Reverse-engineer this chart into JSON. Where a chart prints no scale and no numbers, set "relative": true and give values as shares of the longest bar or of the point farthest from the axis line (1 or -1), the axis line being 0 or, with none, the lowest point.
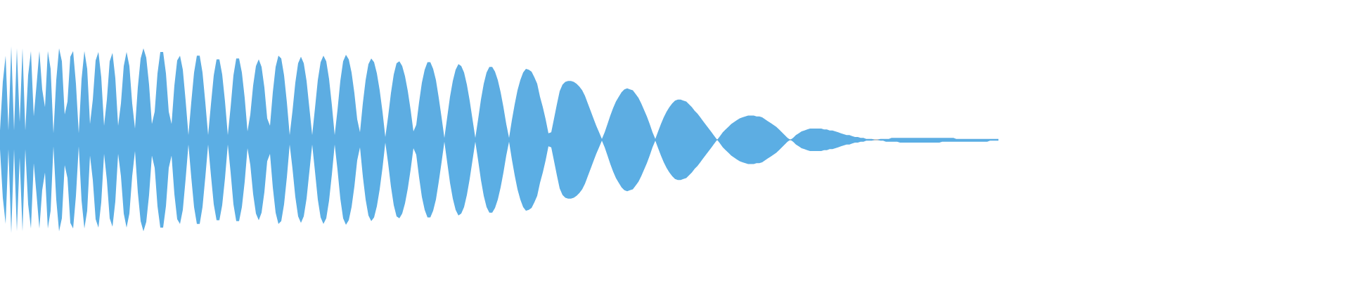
{
  "chart_data": {
    "type": "area",
    "relative": true,
    "categories": [
      null,
      null,
      null,
      null,
      null,
      null,
      null,
      null,
      null,
      null,
      null,
      null,
      null,
      null,
      null,
      null,
      null,
      null,
      null,
      null,
      null,
      null,
      null,
      null,
      null,
      null,
      null,
      null,
      null,
      null,
      null,
      null,
      null,
      null,
      null,
      null,
      null,
      null,
      null,
      null,
      null,
      null,
      null,
      null,
      null,
      null,
      null,
      null,
      null,
      null,
      null,
      null,
      null,
      null,
      null,
      null,
      null,
      null,
      null,
      null,
      null,
      null,
      null,
      null,
      null,
      null,
      null,
      null,
      null,
      null,
      null,
      null,
      null,
      null,
      null,
      null,
      null,
      null,
      null,
      null,
      null,
      null,
      null,
      null,
      null,
      null,
      null,
      null,
      null,
      null,
      null,
      null,
      null,
      null,
      null,
      null,
      null,
      null,
      null,
      null,
      null,
      null,
      null,
      null,
      null,
      null,
      null,
      null,
      null,
      null,
      null,
      null,
      null,
      null,
      null,
      null,
      null,
      null,
      null,
      null,
      null,
      null,
      null,
      null,
      null,
      null,
      null,
      null,
      null,
      null,
      null,
      null,
      null,
      null,
      null,
      null,
      null,
      null,
      null,
      null,
      null,
      null,
      null,
      null,
      null,
      null,
      null,
      null,
      null,
      null,
      null,
      null,
      null,
      null,
      null,
      null,
      null,
      null,
      null,
      null,
      null,
      null,
      null,
      null,
      null,
      null,
      null,
      null,
      null,
      null,
      null,
      null,
      null,
      null,
      null,
      null,
      null,
      null,
      null,
      null,
      null,
      null,
      null,
      null,
      null,
      null,
      null,
      null,
      null,
      null,
      null,
      null,
      null,
      null,
      null,
      null,
      null,
      null,
      null,
      null,
      null,
      null,
      null,
      null,
      null,
      null,
      null,
      null,
      null,
      null,
      null,
      null,
      null,
      null,
      null,
      null,
      null,
      null,
      null,
      null,
      null,
      null,
      null,
      null,
      null,
      null,
      null,
      null,
      null,
      null,
      null,
      null,
      null,
      null,
      null,
      null,
      null,
      null,
      null,
      null,
      null,
      null,
      null,
      null,
      null,
      null,
      null,
      null,
      null,
      null,
      null,
      null,
      null,
      null,
      null,
      null,
      null,
      null,
      null,
      null,
      null,
      null,
      null,
      null,
      null,
      null,
      null,
      null,
      null,
      null,
      null,
      null,
      null,
      null,
      null,
      null,
      null,
      null,
      null,
      null,
      null,
      null,
      null,
      null,
      null,
      null,
      null,
      null,
      null,
      null,
      null,
      null,
      null,
      null,
      null,
      null,
      null,
      null,
      null,
      null,
      null,
      null,
      null,
      null,
      null,
      null,
      null,
      null,
      null,
      null,
      null,
      null,
      null,
      null,
      null,
      null,
      null,
      null,
      null,
      null,
      null,
      null,
      null,
      null,
      null,
      null,
      null,
      null,
      null,
      null,
      null,
      null,
      null,
      null,
      null,
      null,
      null,
      null,
      null,
      null,
      null,
      null,
      null,
      null,
      null,
      null,
      null,
      null,
      null,
      null,
      null,
      null,
      null,
      null,
      null,
      null
    ],
    "series": [
      {
        "color": "#5dade2",
        "values": [
          0.1,
          0.62,
          0.9,
          0.1,
          1,
          0.1,
          0.98,
          0.19,
          0.98,
          0.1,
          0.69,
          0.95,
          0.25,
          0.59,
          0.95,
          0.54,
          0.35,
          0.95,
          0.76,
          0.07,
          0.64,
          0.98,
          0.84,
          0.27,
          0.41,
          0.89,
          0.95,
          0.6,
          0.07,
          0.65,
          0.95,
          0.76,
          0.17,
          0.43,
          0.85,
          0.94,
          0.67,
          0.15,
          0.43,
          0.84,
          0.93,
          0.66,
          0.15,
          0.39,
          0.79,
          0.94,
          0.79,
          0.39,
          0.12,
          0.56,
          0.87,
          0.98,
          0.88,
          0.59,
          0.17,
          0.3,
          0.71,
          0.94,
          0.94,
          0.71,
          0.3,
          0.17,
          0.58,
          0.85,
          0.9,
          0.75,
          0.42,
          0.05,
          0.4,
          0.72,
          0.9,
          0.9,
          0.72,
          0.4,
          0.05,
          0.38,
          0.69,
          0.86,
          0.86,
          0.7,
          0.41,
          0.05,
          0.35,
          0.69,
          0.87,
          0.87,
          0.72,
          0.45,
          0.09,
          0.27,
          0.58,
          0.79,
          0.86,
          0.78,
          0.56,
          0.23,
          0.15,
          0.51,
          0.78,
          0.9,
          0.87,
          0.69,
          0.4,
          0.05,
          0.31,
          0.61,
          0.82,
          0.89,
          0.82,
          0.63,
          0.34,
          0.05,
          0.34,
          0.64,
          0.83,
          0.9,
          0.84,
          0.65,
          0.37,
          0.05,
          0.32,
          0.63,
          0.84,
          0.91,
          0.86,
          0.72,
          0.5,
          0.22,
          0.08,
          0.39,
          0.64,
          0.81,
          0.87,
          0.83,
          0.71,
          0.53,
          0.3,
          0.03,
          0.25,
          0.5,
          0.7,
          0.82,
          0.84,
          0.79,
          0.68,
          0.52,
          0.32,
          0.09,
          0.16,
          0.4,
          0.61,
          0.75,
          0.83,
          0.83,
          0.76,
          0.64,
          0.45,
          0.24,
          0.02,
          0.24,
          0.46,
          0.63,
          0.75,
          0.81,
          0.79,
          0.72,
          0.59,
          0.42,
          0.22,
          0.02,
          0.22,
          0.43,
          0.6,
          0.72,
          0.78,
          0.78,
          0.73,
          0.64,
          0.51,
          0.35,
          0.17,
          0.02,
          0.21,
          0.38,
          0.53,
          0.64,
          0.72,
          0.76,
          0.75,
          0.73,
          0.67,
          0.6,
          0.46,
          0.35,
          0.22,
          0.07,
          0.08,
          0.23,
          0.38,
          0.52,
          0.59,
          0.62,
          0.63,
          0.63,
          0.62,
          0.6,
          0.57,
          0.53,
          0.47,
          0.39,
          0.31,
          0.23,
          0.15,
          0.08,
          0.01,
          0.08,
          0.17,
          0.26,
          0.34,
          0.41,
          0.46,
          0.51,
          0.54,
          0.55,
          0.54,
          0.53,
          0.49,
          0.45,
          0.39,
          0.32,
          0.25,
          0.17,
          0.08,
          0.01,
          0.09,
          0.17,
          0.24,
          0.3,
          0.35,
          0.39,
          0.42,
          0.43,
          0.43,
          0.42,
          0.41,
          0.38,
          0.35,
          0.31,
          0.28,
          0.24,
          0.2,
          0.16,
          0.12,
          0.08,
          0.04,
          0,
          0.04,
          0.08,
          0.11,
          0.14,
          0.17,
          0.19,
          0.21,
          0.23,
          0.24,
          0.25,
          0.26,
          0.26,
          0.26,
          0.25,
          0.25,
          0.24,
          0.22,
          0.2,
          0.18,
          0.16,
          0.14,
          0.11,
          0.08,
          0.05,
          0.02,
          0,
          0.02,
          0.05,
          0.07,
          0.09,
          0.1,
          0.11,
          0.12,
          0.12,
          0.12,
          0.12,
          0.12,
          0.11,
          0.11,
          0.1,
          0.1,
          0.09,
          0.08,
          0.07,
          0.06,
          0.05,
          0.05,
          0.04,
          0.03,
          0.03,
          0.02,
          0.02,
          0.01,
          0.01,
          0.01,
          0,
          0,
          0.01,
          0.01,
          0.01,
          0.01,
          0.02,
          0.02,
          0.02,
          0.02,
          0.02,
          0.02,
          0.02,
          0.02,
          0.02,
          0.02,
          0.02,
          0.02,
          0.02,
          0.02,
          0.02,
          0.02,
          0.02,
          0.02,
          0.02,
          0.02,
          0.02,
          0.02,
          0.02,
          0.01,
          0.01,
          0.01,
          0.01,
          0.01,
          0.01,
          0.01,
          0.01,
          0.01,
          0.01,
          0.01,
          0.01,
          0.01,
          0.01,
          0.01,
          0.01
        ]
      },
      {
        "color": "#5baee4",
        "values": [
          -0.1,
          -0.62,
          -0.9,
          -0.1,
          -1,
          -0.1,
          -0.98,
          -0.19,
          -0.98,
          -0.1,
          -0.69,
          -0.95,
          -0.25,
          -0.59,
          -0.95,
          -0.54,
          -0.35,
          -0.95,
          -0.76,
          -0.07,
          -0.64,
          -0.98,
          -0.84,
          -0.27,
          -0.41,
          -0.89,
          -0.95,
          -0.6,
          -0.07,
          -0.65,
          -0.95,
          -0.76,
          -0.17,
          -0.43,
          -0.85,
          -0.94,
          -0.67,
          -0.15,
          -0.43,
          -0.84,
          -0.93,
          -0.66,
          -0.15,
          -0.39,
          -0.79,
          -0.94,
          -0.79,
          -0.39,
          -0.12,
          -0.56,
          -0.87,
          -0.98,
          -0.88,
          -0.59,
          -0.17,
          -0.3,
          -0.71,
          -0.94,
          -0.94,
          -0.71,
          -0.3,
          -0.17,
          -0.58,
          -0.85,
          -0.9,
          -0.75,
          -0.42,
          -0.05,
          -0.4,
          -0.72,
          -0.9,
          -0.9,
          -0.72,
          -0.4,
          -0.05,
          -0.38,
          -0.69,
          -0.86,
          -0.86,
          -0.7,
          -0.41,
          -0.05,
          -0.35,
          -0.69,
          -0.87,
          -0.87,
          -0.72,
          -0.45,
          -0.09,
          -0.27,
          -0.58,
          -0.79,
          -0.86,
          -0.78,
          -0.56,
          -0.23,
          -0.15,
          -0.51,
          -0.78,
          -0.9,
          -0.87,
          -0.69,
          -0.4,
          -0.05,
          -0.31,
          -0.61,
          -0.82,
          -0.89,
          -0.82,
          -0.63,
          -0.34,
          -0.05,
          -0.34,
          -0.64,
          -0.83,
          -0.9,
          -0.84,
          -0.65,
          -0.37,
          -0.05,
          -0.32,
          -0.63,
          -0.84,
          -0.91,
          -0.86,
          -0.72,
          -0.5,
          -0.22,
          -0.08,
          -0.39,
          -0.64,
          -0.81,
          -0.87,
          -0.83,
          -0.71,
          -0.53,
          -0.3,
          -0.03,
          -0.25,
          -0.5,
          -0.7,
          -0.82,
          -0.84,
          -0.79,
          -0.68,
          -0.52,
          -0.32,
          -0.09,
          -0.16,
          -0.4,
          -0.61,
          -0.75,
          -0.83,
          -0.83,
          -0.76,
          -0.64,
          -0.45,
          -0.24,
          -0.02,
          -0.24,
          -0.46,
          -0.63,
          -0.75,
          -0.81,
          -0.79,
          -0.72,
          -0.59,
          -0.42,
          -0.22,
          -0.02,
          -0.22,
          -0.43,
          -0.6,
          -0.72,
          -0.78,
          -0.78,
          -0.73,
          -0.64,
          -0.51,
          -0.35,
          -0.17,
          -0.02,
          -0.21,
          -0.38,
          -0.53,
          -0.64,
          -0.72,
          -0.76,
          -0.75,
          -0.73,
          -0.67,
          -0.6,
          -0.46,
          -0.35,
          -0.22,
          -0.07,
          -0.08,
          -0.23,
          -0.38,
          -0.52,
          -0.59,
          -0.62,
          -0.63,
          -0.63,
          -0.62,
          -0.6,
          -0.57,
          -0.53,
          -0.47,
          -0.39,
          -0.31,
          -0.23,
          -0.15,
          -0.08,
          -0.01,
          -0.08,
          -0.17,
          -0.26,
          -0.34,
          -0.41,
          -0.46,
          -0.51,
          -0.54,
          -0.55,
          -0.54,
          -0.53,
          -0.49,
          -0.45,
          -0.39,
          -0.32,
          -0.25,
          -0.17,
          -0.08,
          -0.01,
          -0.09,
          -0.17,
          -0.24,
          -0.3,
          -0.35,
          -0.39,
          -0.42,
          -0.43,
          -0.43,
          -0.42,
          -0.41,
          -0.38,
          -0.35,
          -0.31,
          -0.28,
          -0.24,
          -0.2,
          -0.16,
          -0.12,
          -0.08,
          -0.04,
          0,
          -0.04,
          -0.08,
          -0.11,
          -0.14,
          -0.17,
          -0.19,
          -0.21,
          -0.23,
          -0.24,
          -0.25,
          -0.26,
          -0.26,
          -0.26,
          -0.25,
          -0.25,
          -0.24,
          -0.22,
          -0.2,
          -0.18,
          -0.16,
          -0.14,
          -0.11,
          -0.08,
          -0.05,
          -0.02,
          0,
          -0.02,
          -0.05,
          -0.07,
          -0.09,
          -0.1,
          -0.11,
          -0.12,
          -0.12,
          -0.12,
          -0.12,
          -0.12,
          -0.11,
          -0.11,
          -0.1,
          -0.1,
          -0.09,
          -0.08,
          -0.07,
          -0.06,
          -0.05,
          -0.05,
          -0.04,
          -0.03,
          -0.03,
          -0.02,
          -0.02,
          -0.01,
          -0.01,
          -0.01,
          0,
          0,
          -0.01,
          -0.01,
          -0.02,
          -0.02,
          -0.02,
          -0.02,
          -0.02,
          -0.03,
          -0.03,
          -0.03,
          -0.03,
          -0.03,
          -0.03,
          -0.03,
          -0.03,
          -0.03,
          -0.03,
          -0.03,
          -0.03,
          -0.03,
          -0.03,
          -0.03,
          -0.02,
          -0.02,
          -0.02,
          -0.02,
          -0.02,
          -0.02,
          -0.02,
          -0.02,
          -0.02,
          -0.02,
          -0.02,
          -0.02,
          -0.02,
          -0.02,
          -0.02,
          -0.02,
          -0.02,
          -0.01,
          -0.01,
          -0.01,
          -0.01
        ]
      }
    ]
  }
}
